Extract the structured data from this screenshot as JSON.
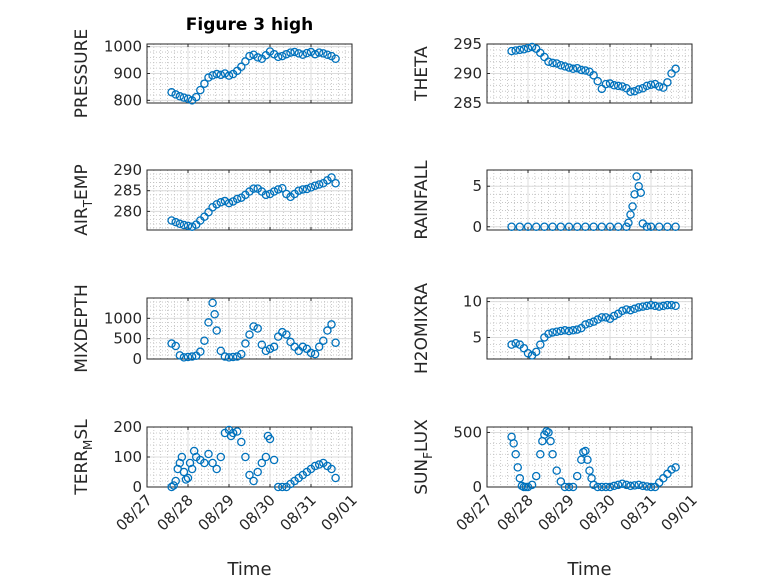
{
  "figure": {
    "title": "Figure 3 high",
    "xlabel": "Time",
    "marker_color": "#0072bd",
    "axes_color": "#262626",
    "grid_color": "#bdbdbd"
  },
  "chart_data": [
    {
      "type": "scatter",
      "title": "Figure 3 high",
      "ylabel": "PRESSURE",
      "ylabel_sub": null,
      "ylim": [
        790,
        1010
      ],
      "yticks": [
        "800",
        "900",
        "1000"
      ],
      "ytick_values": [
        800,
        900,
        1000
      ],
      "xlim": [
        "08/27",
        "09/01"
      ],
      "xticks": [],
      "xlabel": "",
      "grid": true,
      "minor_grid": true,
      "x": [
        0.6,
        0.7,
        0.8,
        0.9,
        1.0,
        1.1,
        1.2,
        1.3,
        1.4,
        1.5,
        1.6,
        1.7,
        1.8,
        1.9,
        2.0,
        2.1,
        2.2,
        2.3,
        2.4,
        2.5,
        2.6,
        2.7,
        2.8,
        2.9,
        3.0,
        3.1,
        3.2,
        3.3,
        3.4,
        3.5,
        3.6,
        3.7,
        3.8,
        3.9,
        4.0,
        4.1,
        4.2,
        4.3,
        4.4,
        4.5,
        4.6
      ],
      "y": [
        830,
        822,
        815,
        810,
        806,
        800,
        812,
        838,
        862,
        885,
        893,
        898,
        895,
        900,
        892,
        898,
        910,
        925,
        945,
        965,
        970,
        960,
        955,
        968,
        982,
        972,
        962,
        965,
        972,
        978,
        980,
        975,
        970,
        976,
        980,
        972,
        978,
        975,
        970,
        965,
        955
      ]
    },
    {
      "type": "scatter",
      "title": "",
      "ylabel": "THETA",
      "ylabel_sub": null,
      "ylim": [
        285,
        295
      ],
      "yticks": [
        "285",
        "290",
        "295"
      ],
      "ytick_values": [
        285,
        290,
        295
      ],
      "xlim": [
        "08/27",
        "09/01"
      ],
      "xticks": [],
      "xlabel": "",
      "grid": true,
      "minor_grid": true,
      "x": [
        0.6,
        0.7,
        0.8,
        0.9,
        1.0,
        1.1,
        1.2,
        1.3,
        1.4,
        1.5,
        1.6,
        1.7,
        1.8,
        1.9,
        2.0,
        2.1,
        2.2,
        2.3,
        2.4,
        2.5,
        2.6,
        2.7,
        2.8,
        2.9,
        3.0,
        3.1,
        3.2,
        3.3,
        3.4,
        3.5,
        3.6,
        3.7,
        3.8,
        3.9,
        4.0,
        4.1,
        4.2,
        4.3,
        4.4,
        4.5,
        4.6
      ],
      "y": [
        293.8,
        293.9,
        294.0,
        294.1,
        294.3,
        294.5,
        294.2,
        293.5,
        292.8,
        292.0,
        291.8,
        291.7,
        291.4,
        291.2,
        291.0,
        290.8,
        290.9,
        290.6,
        290.5,
        290.3,
        289.7,
        288.7,
        287.4,
        288.2,
        288.3,
        288.0,
        287.9,
        287.8,
        287.5,
        286.9,
        287.0,
        287.3,
        287.5,
        287.9,
        288.1,
        288.2,
        287.8,
        287.6,
        288.5,
        290.0,
        290.8
      ]
    },
    {
      "type": "scatter",
      "title": "",
      "ylabel": "AIR",
      "ylabel_sub": "T",
      "ylabel_rest": "EMP",
      "ylim": [
        275.5,
        290
      ],
      "yticks": [
        "280",
        "285",
        "290"
      ],
      "ytick_values": [
        280,
        285,
        290
      ],
      "xlim": [
        "08/27",
        "09/01"
      ],
      "xticks": [],
      "xlabel": "",
      "grid": true,
      "minor_grid": true,
      "x": [
        0.6,
        0.7,
        0.8,
        0.9,
        1.0,
        1.1,
        1.2,
        1.3,
        1.4,
        1.5,
        1.6,
        1.7,
        1.8,
        1.9,
        2.0,
        2.1,
        2.2,
        2.3,
        2.4,
        2.5,
        2.6,
        2.7,
        2.8,
        2.9,
        3.0,
        3.1,
        3.2,
        3.3,
        3.4,
        3.5,
        3.6,
        3.7,
        3.8,
        3.9,
        4.0,
        4.1,
        4.2,
        4.3,
        4.4,
        4.5,
        4.6
      ],
      "y": [
        277.8,
        277.4,
        277.0,
        276.7,
        276.5,
        276.3,
        276.8,
        277.8,
        278.7,
        279.8,
        281.0,
        281.7,
        282.2,
        282.5,
        282.0,
        282.4,
        283.0,
        283.3,
        284.0,
        284.8,
        285.5,
        285.5,
        284.8,
        284.0,
        284.2,
        284.8,
        285.3,
        285.6,
        284.2,
        283.5,
        284.2,
        285.0,
        285.3,
        285.4,
        285.8,
        286.2,
        286.5,
        286.8,
        287.5,
        288.2,
        286.8
      ]
    },
    {
      "type": "scatter",
      "title": "",
      "ylabel": "RAINFALL",
      "ylabel_sub": null,
      "ylim": [
        -0.4,
        7
      ],
      "yticks": [
        "0",
        "5"
      ],
      "ytick_values": [
        0,
        5
      ],
      "xlim": [
        "08/27",
        "09/01"
      ],
      "xticks": [],
      "xlabel": "",
      "grid": true,
      "minor_grid": true,
      "x": [
        0.6,
        0.8,
        1.0,
        1.2,
        1.4,
        1.6,
        1.8,
        2.0,
        2.2,
        2.4,
        2.6,
        2.8,
        3.0,
        3.2,
        3.4,
        3.45,
        3.5,
        3.55,
        3.6,
        3.65,
        3.7,
        3.75,
        3.8,
        3.9,
        4.0,
        4.2,
        4.4,
        4.6
      ],
      "y": [
        0,
        0,
        0,
        0,
        0,
        0,
        0,
        0,
        0,
        0,
        0,
        0,
        0,
        0,
        0,
        0.5,
        1.5,
        2.5,
        4.0,
        6.2,
        5.0,
        4.2,
        0.4,
        0,
        0,
        0,
        0,
        0
      ]
    },
    {
      "type": "scatter",
      "title": "",
      "ylabel": "MIXDEPTH",
      "ylabel_sub": null,
      "ylim": [
        0,
        1500
      ],
      "yticks": [
        "0",
        "500",
        "1000"
      ],
      "ytick_values": [
        0,
        500,
        1000
      ],
      "xlim": [
        "08/27",
        "09/01"
      ],
      "xticks": [],
      "xlabel": "",
      "grid": true,
      "minor_grid": true,
      "x": [
        0.6,
        0.7,
        0.8,
        0.9,
        1.0,
        1.1,
        1.2,
        1.3,
        1.4,
        1.5,
        1.6,
        1.65,
        1.7,
        1.8,
        1.9,
        2.0,
        2.1,
        2.2,
        2.3,
        2.4,
        2.5,
        2.6,
        2.7,
        2.8,
        2.9,
        3.0,
        3.1,
        3.2,
        3.3,
        3.4,
        3.5,
        3.6,
        3.7,
        3.8,
        3.9,
        4.0,
        4.1,
        4.2,
        4.3,
        4.4,
        4.5,
        4.6
      ],
      "y": [
        380,
        320,
        90,
        40,
        50,
        60,
        80,
        180,
        450,
        900,
        1380,
        1100,
        700,
        200,
        60,
        40,
        50,
        60,
        120,
        380,
        600,
        800,
        750,
        350,
        200,
        250,
        300,
        550,
        660,
        600,
        420,
        300,
        200,
        300,
        250,
        150,
        120,
        300,
        450,
        700,
        850,
        400
      ]
    },
    {
      "type": "scatter",
      "title": "",
      "ylabel": "H2OMIXRA",
      "ylabel_sub": null,
      "ylim": [
        2,
        10.5
      ],
      "yticks": [
        "5",
        "10"
      ],
      "ytick_values": [
        5,
        10
      ],
      "xlim": [
        "08/27",
        "09/01"
      ],
      "xticks": [],
      "xlabel": "",
      "grid": true,
      "minor_grid": true,
      "x": [
        0.6,
        0.7,
        0.8,
        0.9,
        1.0,
        1.1,
        1.2,
        1.3,
        1.4,
        1.5,
        1.6,
        1.7,
        1.8,
        1.9,
        2.0,
        2.1,
        2.2,
        2.3,
        2.4,
        2.5,
        2.6,
        2.7,
        2.8,
        2.9,
        3.0,
        3.1,
        3.2,
        3.3,
        3.4,
        3.5,
        3.6,
        3.7,
        3.8,
        3.9,
        4.0,
        4.1,
        4.2,
        4.3,
        4.4,
        4.5,
        4.6
      ],
      "y": [
        4.0,
        4.2,
        4.0,
        3.5,
        2.8,
        2.5,
        3.0,
        4.0,
        5.0,
        5.5,
        5.7,
        5.8,
        5.9,
        6.0,
        5.9,
        6.0,
        6.1,
        6.3,
        6.8,
        7.0,
        7.2,
        7.5,
        7.8,
        7.8,
        7.6,
        8.0,
        8.3,
        8.7,
        8.9,
        8.8,
        9.0,
        9.2,
        9.3,
        9.4,
        9.5,
        9.4,
        9.3,
        9.4,
        9.5,
        9.5,
        9.4
      ]
    },
    {
      "type": "scatter",
      "title": "",
      "ylabel": "TERR",
      "ylabel_sub": "M",
      "ylabel_rest": "SL",
      "ylim": [
        0,
        200
      ],
      "yticks": [
        "0",
        "100",
        "200"
      ],
      "ytick_values": [
        0,
        100,
        200
      ],
      "xlim": [
        "08/27",
        "09/01"
      ],
      "xticks": [
        "08/27",
        "08/28",
        "08/29",
        "08/30",
        "08/31",
        "09/01"
      ],
      "xlabel": "Time",
      "grid": true,
      "minor_grid": true,
      "x": [
        0.6,
        0.65,
        0.7,
        0.75,
        0.8,
        0.85,
        0.9,
        0.95,
        1.0,
        1.05,
        1.1,
        1.15,
        1.2,
        1.3,
        1.4,
        1.5,
        1.6,
        1.7,
        1.8,
        1.9,
        2.0,
        2.05,
        2.1,
        2.2,
        2.3,
        2.4,
        2.5,
        2.6,
        2.7,
        2.8,
        2.9,
        2.95,
        3.0,
        3.1,
        3.2,
        3.3,
        3.4,
        3.5,
        3.6,
        3.7,
        3.8,
        3.9,
        4.0,
        4.1,
        4.2,
        4.3,
        4.4,
        4.5,
        4.6
      ],
      "y": [
        0,
        5,
        20,
        60,
        80,
        100,
        50,
        25,
        30,
        80,
        60,
        120,
        100,
        90,
        80,
        110,
        80,
        60,
        100,
        180,
        190,
        170,
        180,
        185,
        150,
        100,
        40,
        20,
        50,
        80,
        100,
        170,
        160,
        90,
        0,
        0,
        0,
        10,
        20,
        30,
        40,
        50,
        60,
        70,
        75,
        80,
        70,
        60,
        30
      ]
    },
    {
      "type": "scatter",
      "title": "",
      "ylabel": "SUN",
      "ylabel_sub": "F",
      "ylabel_rest": "LUX",
      "ylim": [
        0,
        550
      ],
      "yticks": [
        "0",
        "500"
      ],
      "ytick_values": [
        0,
        500
      ],
      "xlim": [
        "08/27",
        "09/01"
      ],
      "xticks": [
        "08/27",
        "08/28",
        "08/29",
        "08/30",
        "08/31",
        "09/01"
      ],
      "xlabel": "Time",
      "grid": true,
      "minor_grid": true,
      "x": [
        0.6,
        0.65,
        0.7,
        0.75,
        0.8,
        0.85,
        0.9,
        0.95,
        1.0,
        1.1,
        1.2,
        1.3,
        1.35,
        1.4,
        1.45,
        1.5,
        1.55,
        1.6,
        1.7,
        1.8,
        1.9,
        2.0,
        2.1,
        2.2,
        2.3,
        2.35,
        2.4,
        2.45,
        2.5,
        2.55,
        2.6,
        2.7,
        2.8,
        2.9,
        3.0,
        3.1,
        3.2,
        3.3,
        3.4,
        3.5,
        3.6,
        3.7,
        3.8,
        3.9,
        4.0,
        4.1,
        4.2,
        4.3,
        4.4,
        4.5,
        4.6
      ],
      "y": [
        460,
        400,
        300,
        180,
        80,
        10,
        0,
        0,
        0,
        20,
        100,
        300,
        420,
        480,
        510,
        500,
        420,
        300,
        150,
        50,
        0,
        0,
        0,
        100,
        250,
        320,
        330,
        250,
        150,
        80,
        20,
        0,
        0,
        0,
        0,
        10,
        20,
        30,
        20,
        10,
        15,
        20,
        10,
        5,
        0,
        0,
        40,
        80,
        120,
        160,
        180
      ]
    }
  ]
}
